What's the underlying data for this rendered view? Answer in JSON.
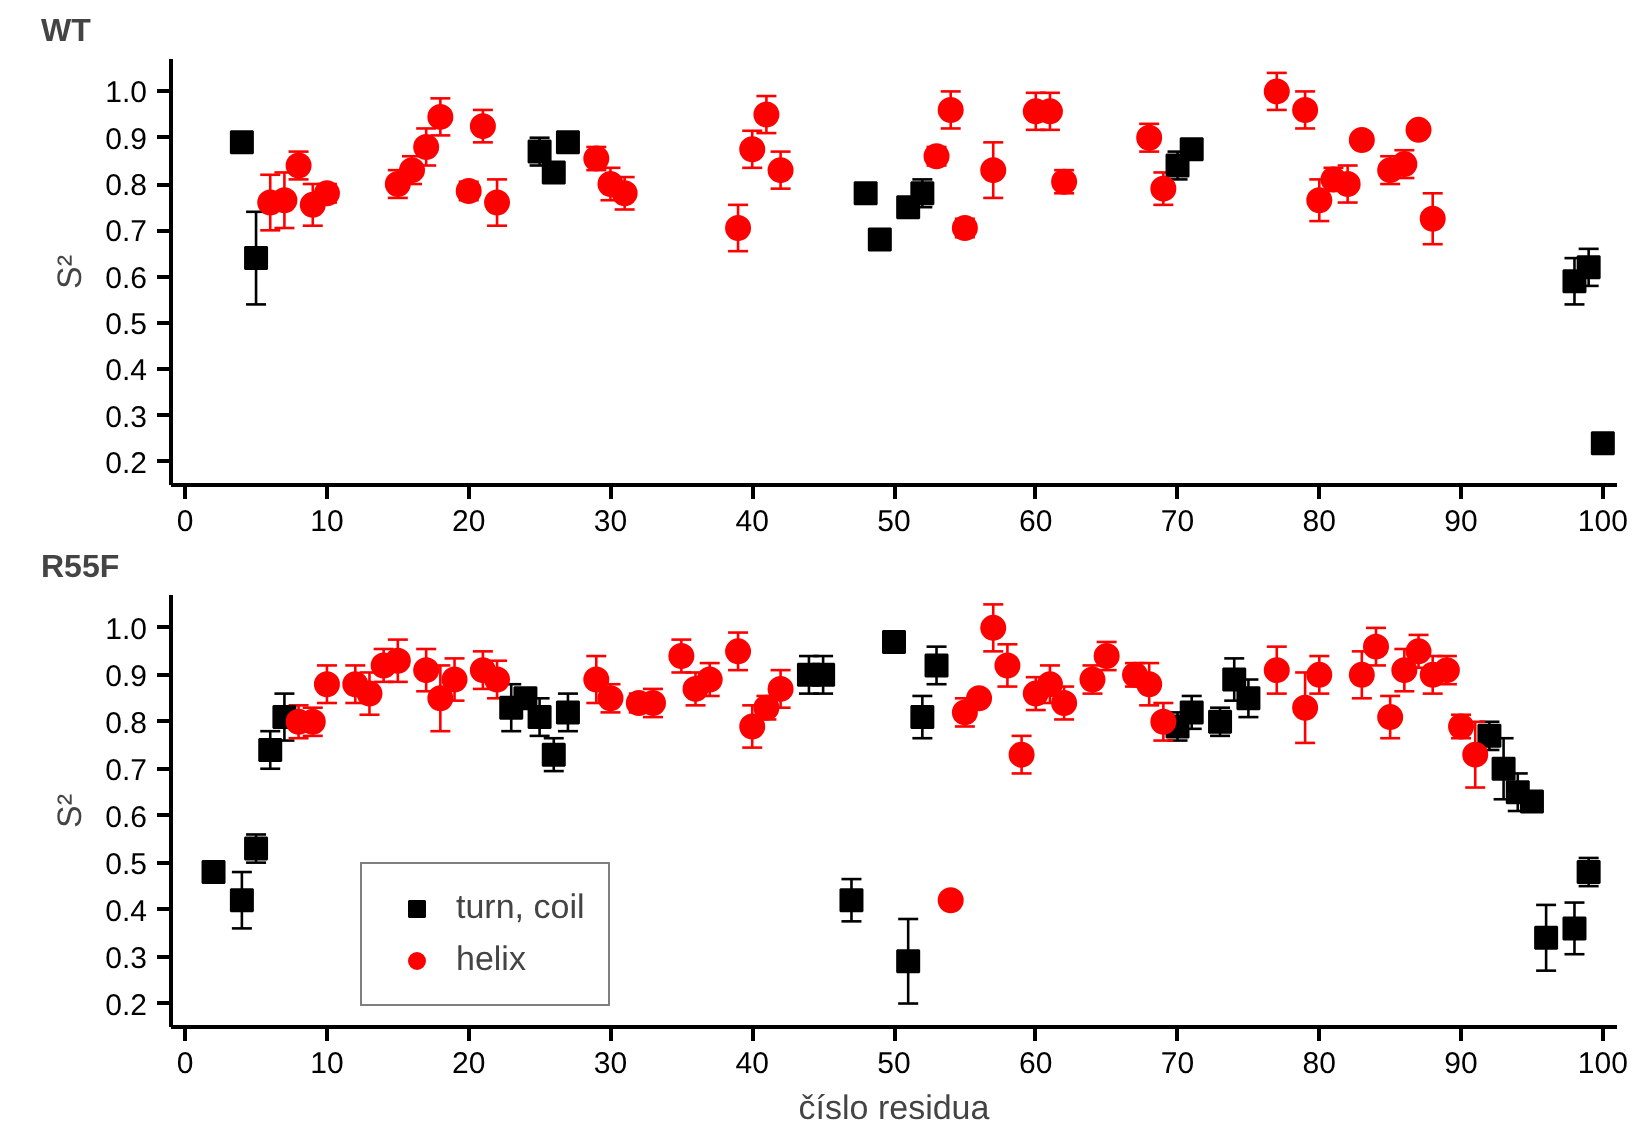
{
  "chart_data": [
    {
      "type": "scatter",
      "title": "WT",
      "ylabel": "S²",
      "xlim": [
        -1,
        101
      ],
      "ylim": [
        0.15,
        1.07
      ],
      "xticks": [
        0,
        10,
        20,
        30,
        40,
        50,
        60,
        70,
        80,
        90,
        100
      ],
      "yticks": [
        0.2,
        0.3,
        0.4,
        0.5,
        0.6,
        0.7,
        0.8,
        0.9,
        {
          "value": 1,
          "label": "1.0"
        }
      ],
      "grid": false,
      "legend": false,
      "series": [
        {
          "color": "#000000",
          "marker": "square",
          "x": [
            4,
            5,
            25,
            26,
            27,
            48,
            49,
            51,
            52,
            70,
            71,
            98,
            99,
            100
          ],
          "values": [
            0.89,
            0.64,
            0.87,
            0.825,
            0.89,
            0.78,
            0.68,
            0.75,
            0.78,
            0.84,
            0.875,
            0.59,
            0.62,
            0.24
          ],
          "errors": [
            0.02,
            0.1,
            0.03,
            0.02,
            0.02,
            0.02,
            0.015,
            null,
            0.03,
            0.03,
            0.02,
            0.05,
            0.04,
            null
          ]
        },
        {
          "color": "#ff0000",
          "marker": "circle",
          "x": [
            6,
            7,
            8,
            9,
            10,
            15,
            16,
            17,
            18,
            20,
            21,
            22,
            29,
            30,
            31,
            39,
            40,
            41,
            42,
            53,
            54,
            55,
            57,
            60,
            61,
            62,
            68,
            69,
            77,
            79,
            80,
            81,
            82,
            83,
            85,
            86,
            87,
            88
          ],
          "values": [
            0.76,
            0.765,
            0.84,
            0.755,
            0.78,
            0.8,
            0.83,
            0.88,
            0.945,
            0.785,
            0.925,
            0.76,
            0.855,
            0.8,
            0.78,
            0.705,
            0.875,
            0.95,
            0.83,
            0.86,
            0.96,
            0.705,
            0.83,
            0.957,
            0.957,
            0.805,
            0.9,
            0.79,
            1.0,
            0.96,
            0.765,
            0.81,
            0.8,
            0.895,
            0.83,
            0.843,
            0.917,
            0.725
          ],
          "errors": [
            0.06,
            0.06,
            0.03,
            0.045,
            0.02,
            0.03,
            0.03,
            0.04,
            0.04,
            0.02,
            0.035,
            0.05,
            0.025,
            0.035,
            0.035,
            0.05,
            0.04,
            0.04,
            0.04,
            0.02,
            0.04,
            0.02,
            0.06,
            0.04,
            0.04,
            0.025,
            0.03,
            0.035,
            0.04,
            0.04,
            0.045,
            0.025,
            0.04,
            null,
            0.03,
            0.03,
            null,
            0.055
          ]
        }
      ]
    },
    {
      "type": "scatter",
      "title": "R55F",
      "xlabel": "číslo residua",
      "ylabel": "S²",
      "xlim": [
        -1,
        101
      ],
      "ylim": [
        0.15,
        1.07
      ],
      "xticks": [
        0,
        10,
        20,
        30,
        40,
        50,
        60,
        70,
        80,
        90,
        100
      ],
      "yticks": [
        0.2,
        0.3,
        0.4,
        0.5,
        0.6,
        0.7,
        0.8,
        0.9,
        {
          "value": 1,
          "label": "1.0"
        }
      ],
      "grid": false,
      "legend": "bottom left",
      "series": [
        {
          "name": "turn, coil",
          "color": "#000000",
          "marker": "square",
          "x": [
            2,
            4,
            5,
            6,
            7,
            23,
            24,
            25,
            26,
            27,
            44,
            45,
            47,
            50,
            51,
            52,
            53,
            70,
            71,
            73,
            74,
            75,
            92,
            93,
            94,
            95,
            96,
            98,
            99
          ],
          "values": [
            0.48,
            0.42,
            0.53,
            0.74,
            0.81,
            0.83,
            0.85,
            0.81,
            0.73,
            0.82,
            0.9,
            0.9,
            0.42,
            0.97,
            0.29,
            0.81,
            0.92,
            0.79,
            0.82,
            0.8,
            0.89,
            0.85,
            0.77,
            0.7,
            0.65,
            0.63,
            0.34,
            0.36,
            0.48
          ],
          "errors": [
            null,
            0.06,
            0.03,
            0.04,
            0.05,
            0.05,
            null,
            0.04,
            0.035,
            0.04,
            0.04,
            0.04,
            0.045,
            0.02,
            0.09,
            0.045,
            0.04,
            0.03,
            0.035,
            0.03,
            0.045,
            0.04,
            0.03,
            0.065,
            0.04,
            0.02,
            0.07,
            0.055,
            0.03
          ]
        },
        {
          "name": "helix",
          "color": "#ff0000",
          "marker": "circle",
          "x": [
            8,
            9,
            10,
            12,
            13,
            14,
            15,
            17,
            18,
            19,
            21,
            22,
            29,
            30,
            32,
            33,
            35,
            36,
            37,
            39,
            40,
            41,
            42,
            54,
            55,
            56,
            57,
            58,
            59,
            60,
            61,
            62,
            64,
            65,
            67,
            68,
            69,
            77,
            79,
            80,
            83,
            84,
            85,
            86,
            87,
            88,
            89,
            90,
            91
          ],
          "values": [
            0.8,
            0.8,
            0.88,
            0.88,
            0.86,
            0.92,
            0.93,
            0.91,
            0.85,
            0.89,
            0.91,
            0.89,
            0.89,
            0.85,
            0.84,
            0.84,
            0.94,
            0.87,
            0.89,
            0.95,
            0.79,
            0.83,
            0.87,
            0.42,
            0.82,
            0.85,
            1.0,
            0.92,
            0.73,
            0.86,
            0.88,
            0.84,
            0.89,
            0.94,
            0.9,
            0.88,
            0.8,
            0.91,
            0.83,
            0.9,
            0.9,
            0.96,
            0.81,
            0.91,
            0.95,
            0.9,
            0.91,
            0.79,
            0.73
          ],
          "errors": [
            0.035,
            0.03,
            0.04,
            0.04,
            0.045,
            0.035,
            0.045,
            0.045,
            0.07,
            0.045,
            0.04,
            0.04,
            0.05,
            0.03,
            0.02,
            0.03,
            0.035,
            0.035,
            0.035,
            0.04,
            0.045,
            0.025,
            0.04,
            0.015,
            0.03,
            null,
            0.05,
            0.045,
            0.04,
            0.035,
            0.04,
            0.035,
            0.03,
            0.03,
            0.025,
            0.045,
            0.04,
            0.05,
            0.075,
            0.04,
            0.05,
            0.04,
            0.045,
            0.045,
            0.035,
            0.04,
            0.03,
            0.025,
            0.07
          ]
        }
      ]
    }
  ]
}
